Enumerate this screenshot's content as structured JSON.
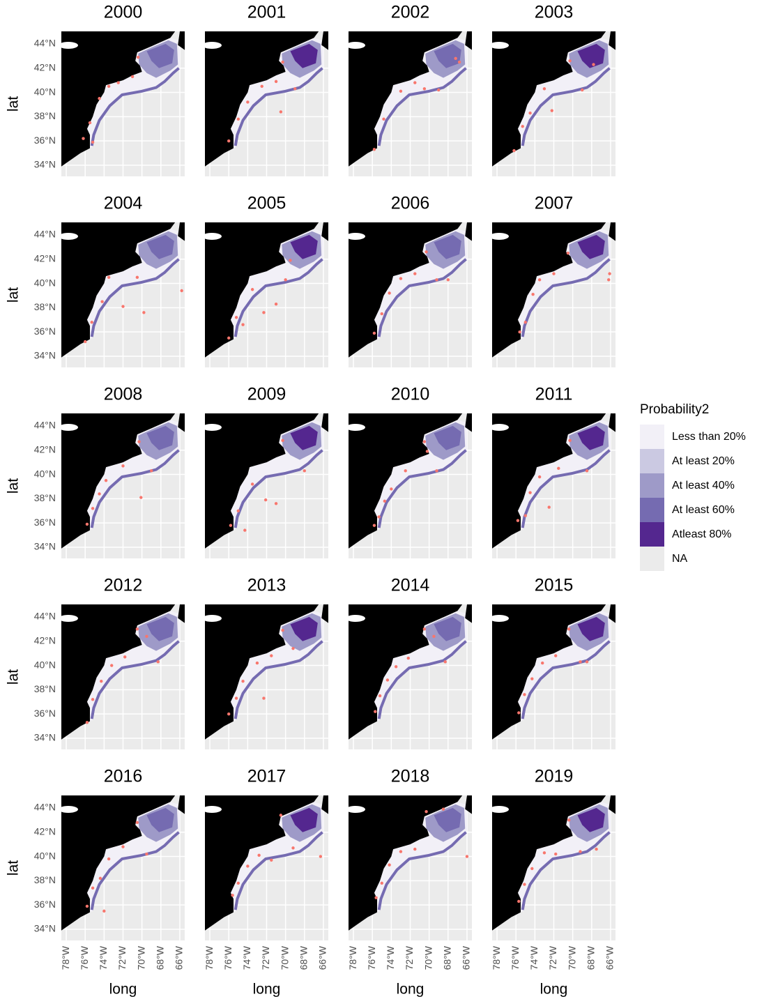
{
  "chart_data": {
    "type": "facet-map",
    "xlabel": "long",
    "ylabel": "lat",
    "point_color": "#f8766d",
    "xlim": [
      -78.52,
      -65.48
    ],
    "ylim": [
      33.08,
      45.03
    ],
    "xticks": [
      {
        "value": -78,
        "label": "78°W"
      },
      {
        "value": -76,
        "label": "76°W"
      },
      {
        "value": -74,
        "label": "74°W"
      },
      {
        "value": -72,
        "label": "72°W"
      },
      {
        "value": -70,
        "label": "70°W"
      },
      {
        "value": -68,
        "label": "68°W"
      },
      {
        "value": -66,
        "label": "66°W"
      }
    ],
    "yticks": [
      {
        "value": 34,
        "label": "34°N"
      },
      {
        "value": 36,
        "label": "36°N"
      },
      {
        "value": 38,
        "label": "38°N"
      },
      {
        "value": 40,
        "label": "40°N"
      },
      {
        "value": 42,
        "label": "42°N"
      },
      {
        "value": 44,
        "label": "44°N"
      }
    ],
    "legend": {
      "title": "Probability2",
      "items": [
        {
          "label": "Less than 20%",
          "color": "#f2f0f7"
        },
        {
          "label": "At least 20%",
          "color": "#cbc9e2"
        },
        {
          "label": "At least 40%",
          "color": "#9e9ac8"
        },
        {
          "label": "At least 60%",
          "color": "#756bb1"
        },
        {
          "label": "Atleast 80%",
          "color": "#54278f"
        },
        {
          "label": "NA",
          "color": "#ebebeb"
        }
      ]
    },
    "panels": [
      {
        "title": "2000",
        "x": [
          -76.2,
          -75.5,
          -74.5,
          -73.5,
          -72.5,
          -71,
          -70.4,
          -75.2
        ],
        "y": [
          36.2,
          37.5,
          39.5,
          40.5,
          40.8,
          41.3,
          42.9,
          35.9
        ]
      },
      {
        "title": "2001",
        "x": [
          -76,
          -75,
          -74,
          -72.5,
          -71,
          -70.3,
          -69,
          -70.5
        ],
        "y": [
          36,
          37.8,
          39.2,
          40.5,
          40.9,
          42.5,
          40.3,
          38.4
        ]
      },
      {
        "title": "2002",
        "x": [
          -75.8,
          -74.8,
          -73,
          -71.5,
          -70.5,
          -69,
          -66.8,
          -67.2
        ],
        "y": [
          35.3,
          37.8,
          40.1,
          40.8,
          40.3,
          40.2,
          42.5,
          42.8
        ]
      },
      {
        "title": "2003",
        "x": [
          -76.2,
          -75.3,
          -74.5,
          -73,
          -72.2,
          -70.3,
          -69,
          -67.8
        ],
        "y": [
          35.2,
          37.2,
          38.3,
          40.3,
          38.5,
          42.6,
          40.2,
          42.3
        ]
      },
      {
        "title": "2004",
        "x": [
          -76,
          -75.3,
          -74.2,
          -73.5,
          -72,
          -70.5,
          -69.8,
          -65.8
        ],
        "y": [
          35.2,
          36.8,
          38.5,
          40.5,
          38.1,
          40.5,
          37.6,
          39.4
        ]
      },
      {
        "title": "2005",
        "x": [
          -76,
          -75.2,
          -74.5,
          -73.5,
          -72.3,
          -71,
          -70,
          -69.5
        ],
        "y": [
          35.5,
          37.2,
          36.6,
          39.5,
          37.6,
          38.3,
          40.3,
          41.9
        ]
      },
      {
        "title": "2006",
        "x": [
          -75.8,
          -75,
          -74.2,
          -73,
          -71.5,
          -70.3,
          -69.2,
          -68
        ],
        "y": [
          35.9,
          37.5,
          39.2,
          40.4,
          40.8,
          42.6,
          40.3,
          40.3
        ]
      },
      {
        "title": "2007",
        "x": [
          -75.6,
          -75,
          -74.2,
          -73.5,
          -72,
          -70.5,
          -66.2,
          -66.1
        ],
        "y": [
          36,
          36.8,
          39.1,
          40.3,
          40.8,
          42.5,
          40.3,
          40.8
        ]
      },
      {
        "title": "2008",
        "x": [
          -75.8,
          -75.2,
          -74.5,
          -73.8,
          -72,
          -70.3,
          -70.1,
          -69
        ],
        "y": [
          35.9,
          37.2,
          38.4,
          39.5,
          40.7,
          42.7,
          38.1,
          40.3
        ]
      },
      {
        "title": "2009",
        "x": [
          -75.8,
          -75,
          -74.3,
          -73.5,
          -72.1,
          -71,
          -70.3,
          -68
        ],
        "y": [
          35.8,
          37,
          35.4,
          39.2,
          37.9,
          37.6,
          42.8,
          40.3
        ]
      },
      {
        "title": "2010",
        "x": [
          -75.8,
          -75.3,
          -74.7,
          -74,
          -72.5,
          -70.5,
          -69.2,
          -70.2
        ],
        "y": [
          35.8,
          36.5,
          37.8,
          38.8,
          40.3,
          42.7,
          40.3,
          41.9
        ]
      },
      {
        "title": "2011",
        "x": [
          -75.8,
          -75,
          -74.5,
          -73.5,
          -72.5,
          -71.5,
          -70.3,
          -68.5
        ],
        "y": [
          36.2,
          36.6,
          38.5,
          39.8,
          37.3,
          40.5,
          42.8,
          40.3
        ]
      },
      {
        "title": "2012",
        "x": [
          -75.8,
          -75.2,
          -74.3,
          -73.2,
          -71.8,
          -70.5,
          -69.5,
          -68.3
        ],
        "y": [
          35.3,
          37.2,
          38.7,
          40,
          40.7,
          43,
          42.4,
          40.3
        ]
      },
      {
        "title": "2013",
        "x": [
          -76,
          -75.2,
          -74.5,
          -73,
          -71.5,
          -70.3,
          -69.2,
          -72.3
        ],
        "y": [
          36,
          37.3,
          38.7,
          40.2,
          40.8,
          42.9,
          41.4,
          37.3
        ]
      },
      {
        "title": "2014",
        "x": [
          -75.7,
          -75.2,
          -74.4,
          -73.5,
          -72.2,
          -70.5,
          -69.5,
          -68.3
        ],
        "y": [
          36.2,
          37.5,
          38.8,
          39.9,
          40.6,
          43,
          42.4,
          40.3
        ]
      },
      {
        "title": "2015",
        "x": [
          -75.7,
          -75.1,
          -74.3,
          -73.2,
          -71.8,
          -70.4,
          -69.2,
          -68.5
        ],
        "y": [
          36.1,
          37.6,
          38.9,
          40.2,
          40.8,
          43,
          40.3,
          40.3
        ]
      },
      {
        "title": "2016",
        "x": [
          -75.8,
          -75.2,
          -74.4,
          -73.5,
          -72,
          -70.5,
          -69.5,
          -74
        ],
        "y": [
          35.9,
          37.4,
          38.2,
          39.8,
          40.8,
          42.8,
          40.2,
          35.5
        ]
      },
      {
        "title": "2017",
        "x": [
          -75.6,
          -75,
          -74,
          -72.8,
          -71.5,
          -70.5,
          -69.2,
          -66.3
        ],
        "y": [
          36.8,
          37.8,
          39.2,
          40.1,
          39.7,
          43.4,
          40.7,
          40
        ]
      },
      {
        "title": "2018",
        "x": [
          -75.6,
          -75,
          -74.2,
          -73,
          -71.5,
          -70.3,
          -68.5,
          -66
        ],
        "y": [
          36.6,
          37.8,
          39.3,
          40.4,
          40.6,
          43.7,
          43.9,
          40
        ]
      },
      {
        "title": "2019",
        "x": [
          -75.7,
          -75.1,
          -74.3,
          -73,
          -71.8,
          -70.4,
          -69.2,
          -67.5
        ],
        "y": [
          36.3,
          37.7,
          39,
          40.3,
          40.2,
          43,
          40.4,
          40.6
        ]
      }
    ]
  }
}
